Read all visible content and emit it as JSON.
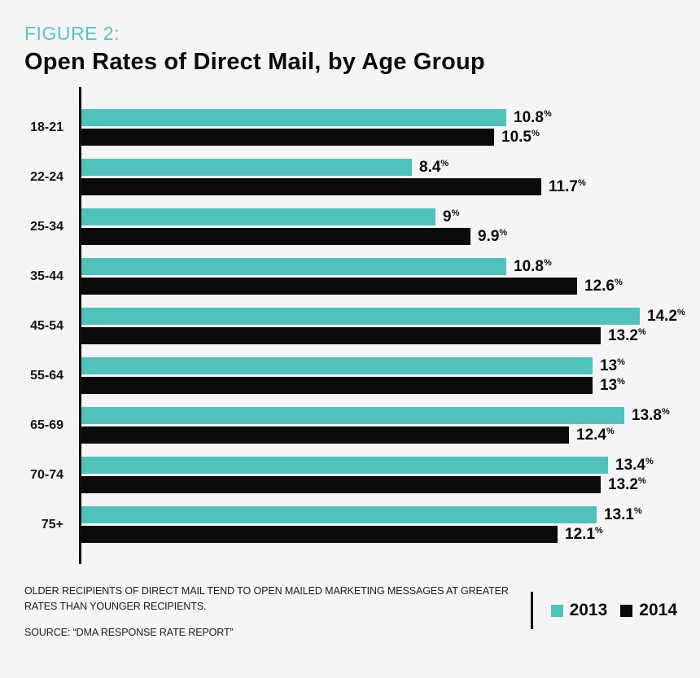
{
  "header": {
    "figure_label": "FIGURE 2:",
    "title": "Open Rates of Direct Mail, by Age Group"
  },
  "chart_data": {
    "type": "bar",
    "orientation": "horizontal",
    "title": "Open Rates of Direct Mail, by Age Group",
    "categories": [
      "18-21",
      "22-24",
      "25-34",
      "35-44",
      "45-54",
      "55-64",
      "65-69",
      "70-74",
      "75+"
    ],
    "series": [
      {
        "name": "2013",
        "color": "#4fc2bb",
        "values": [
          10.8,
          8.4,
          9,
          10.8,
          14.2,
          13,
          13.8,
          13.4,
          13.1
        ],
        "labels": [
          "10.8",
          "8.4",
          "9",
          "10.8",
          "14.2",
          "13",
          "13.8",
          "13.4",
          "13.1"
        ]
      },
      {
        "name": "2014",
        "color": "#0b0b0b",
        "values": [
          10.5,
          11.7,
          9.9,
          12.6,
          13.2,
          13,
          12.4,
          13.2,
          12.1
        ],
        "labels": [
          "10.5",
          "11.7",
          "9.9",
          "12.6",
          "13.2",
          "13",
          "12.4",
          "13.2",
          "12.1"
        ]
      }
    ],
    "unit": "%",
    "xlim": [
      0,
      14.2
    ],
    "grid": false,
    "legend_position": "bottom-right"
  },
  "footer": {
    "note": "OLDER RECIPIENTS OF DIRECT MAIL TEND TO OPEN MAILED MARKETING MESSAGES AT GREATER RATES THAN YOUNGER RECIPIENTS.",
    "source": "SOURCE: “DMA RESPONSE RATE REPORT”"
  },
  "legend": {
    "items": [
      {
        "label": "2013",
        "color": "#4fc2bb"
      },
      {
        "label": "2014",
        "color": "#0b0b0b"
      }
    ]
  },
  "colors": {
    "accent_teal": "#4fc2bb",
    "bar_black": "#0b0b0b",
    "background": "#f5f5f6",
    "figure_label_teal": "#56c6c1"
  }
}
